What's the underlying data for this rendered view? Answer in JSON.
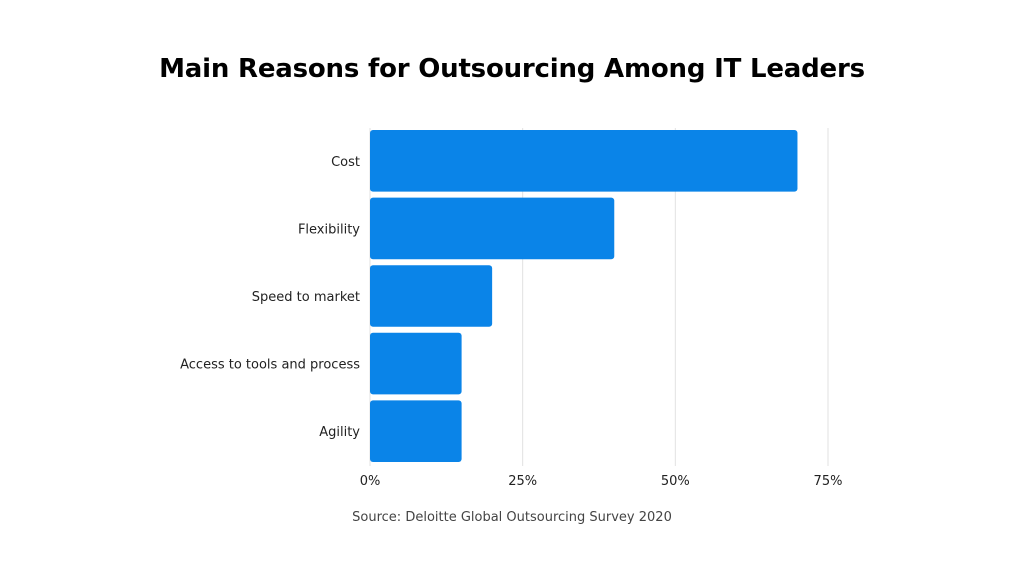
{
  "chart_data": {
    "type": "bar",
    "orientation": "horizontal",
    "title": "Main Reasons for Outsourcing Among IT Leaders",
    "categories": [
      "Cost",
      "Flexibility",
      "Speed to market",
      "Access to tools and process",
      "Agility"
    ],
    "values": [
      70,
      40,
      20,
      15,
      15
    ],
    "x_ticks": [
      "0%",
      "25%",
      "50%",
      "75%"
    ],
    "xlim": [
      0,
      75
    ],
    "xlabel": "",
    "ylabel": "",
    "grid": "vertical",
    "bar_color": "#0A84E8",
    "grid_color": "#E2E2E2"
  },
  "source": "Source: Deloitte Global Outsourcing Survey 2020"
}
